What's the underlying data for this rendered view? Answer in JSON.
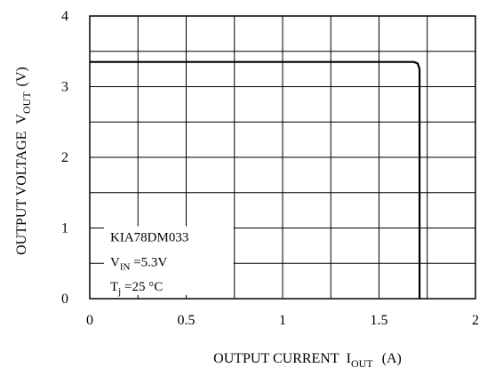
{
  "chart_data": {
    "type": "line",
    "xlabel_main": "OUTPUT CURRENT",
    "xlabel_sym": "I",
    "xlabel_sub": "OUT",
    "xlabel_unit": "(A)",
    "ylabel_main": "OUTPUT VOLTAGE",
    "ylabel_sym": "V",
    "ylabel_sub": "OUT",
    "ylabel_unit": "(V)",
    "xlim": [
      0,
      2
    ],
    "ylim": [
      0,
      4
    ],
    "x_ticks": [
      0,
      0.5,
      1,
      1.5,
      2
    ],
    "x_tick_labels": [
      "0",
      "0.5",
      "1",
      "1.5",
      "2"
    ],
    "y_ticks": [
      0,
      1,
      2,
      3,
      4
    ],
    "y_tick_labels": [
      "0",
      "1",
      "2",
      "3",
      "4"
    ],
    "grid": true,
    "series": [
      {
        "x": [
          0,
          1.68,
          1.7,
          1.71,
          1.71
        ],
        "y": [
          3.35,
          3.35,
          3.33,
          3.25,
          0
        ],
        "color": "#000000"
      }
    ],
    "annotation": {
      "line1": "KIA78DM033",
      "line2_sym": "V",
      "line2_sub": "IN",
      "line2_rest": " =5.3V",
      "line3_sym": "T",
      "line3_sub": "j",
      "line3_rest": " =25 °C"
    }
  }
}
